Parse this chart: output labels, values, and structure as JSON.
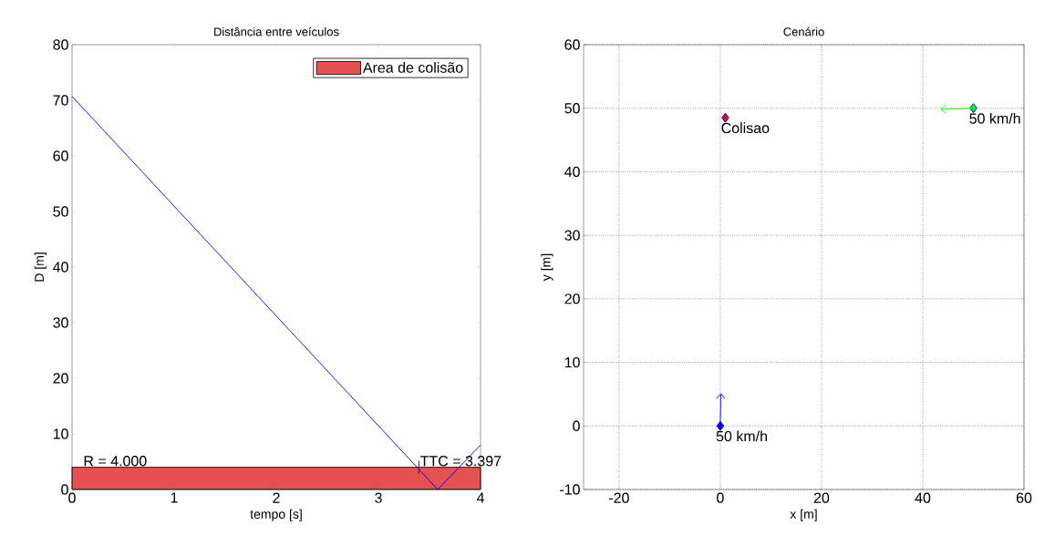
{
  "chart_data": [
    {
      "type": "line",
      "title": "Distância entre veículos",
      "xlabel": "tempo [s]",
      "ylabel": "D [m]",
      "x": [
        0,
        3.58,
        4
      ],
      "series": [
        {
          "color": "#0000ff",
          "values": [
            70.7,
            0,
            8
          ]
        }
      ],
      "xlim": [
        0,
        4
      ],
      "ylim": [
        0,
        80
      ],
      "xticks": [
        0,
        1,
        2,
        3,
        4
      ],
      "yticks": [
        0,
        10,
        20,
        30,
        40,
        50,
        60,
        70,
        80
      ],
      "bands": [
        {
          "axis": "y",
          "from": 0,
          "to": 4,
          "label": "Area de colisão",
          "color": "#e55050"
        }
      ],
      "annotations": [
        {
          "text": "R = 4.000",
          "x": 0.1,
          "y": 4
        },
        {
          "text": "TTC = 3.397",
          "x": 3.397,
          "y": 4
        }
      ],
      "legend": "top right",
      "grid": false
    },
    {
      "type": "scatter",
      "title": "Cenário",
      "xlabel": "x [m]",
      "ylabel": "y [m]",
      "series": [
        {
          "x": [
            0
          ],
          "values": [
            0
          ],
          "color": "#0000ff"
        },
        {
          "x": [
            50
          ],
          "values": [
            50
          ],
          "color": "#00ff00"
        },
        {
          "x": [
            1
          ],
          "values": [
            48.5
          ],
          "color": "#ff0000"
        }
      ],
      "xlim": [
        -27,
        60
      ],
      "ylim": [
        -10,
        60
      ],
      "xticks": [
        -20,
        0,
        20,
        40,
        60
      ],
      "yticks": [
        -10,
        0,
        10,
        20,
        30,
        40,
        50,
        60
      ],
      "annotations": [
        {
          "text": "Colisao",
          "x": 1,
          "y": 48.5
        },
        {
          "text": "50 km/h",
          "x": 50,
          "y": 50
        },
        {
          "text": "50 km/h",
          "x": 0,
          "y": 0
        }
      ],
      "marker": "diamond",
      "grid": true
    }
  ]
}
